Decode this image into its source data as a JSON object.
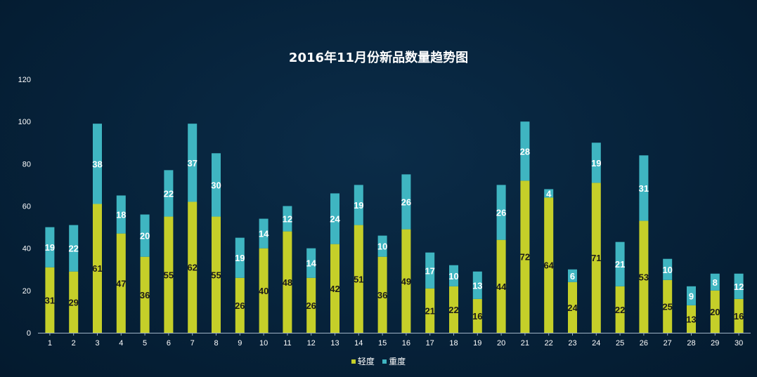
{
  "chart_data": {
    "type": "bar",
    "stacked": true,
    "title": "2016年11月份新品数量趋势图",
    "xlabel": "",
    "ylabel": "",
    "ylim": [
      0,
      120
    ],
    "yticks": [
      0,
      20,
      40,
      60,
      80,
      100,
      120
    ],
    "grid": false,
    "legend_position": "bottom",
    "categories": [
      "1",
      "2",
      "3",
      "4",
      "5",
      "6",
      "7",
      "8",
      "9",
      "10",
      "11",
      "12",
      "13",
      "14",
      "15",
      "16",
      "17",
      "18",
      "19",
      "20",
      "21",
      "22",
      "23",
      "24",
      "25",
      "26",
      "27",
      "28",
      "29",
      "30"
    ],
    "series": [
      {
        "name": "轻度",
        "color": "#c5cf29",
        "values": [
          31,
          29,
          61,
          47,
          36,
          55,
          62,
          55,
          26,
          40,
          48,
          26,
          42,
          51,
          36,
          49,
          21,
          22,
          16,
          44,
          72,
          64,
          24,
          71,
          22,
          53,
          25,
          13,
          20,
          16
        ]
      },
      {
        "name": "重度",
        "color": "#3fb5c1",
        "values": [
          19,
          22,
          38,
          18,
          20,
          22,
          37,
          30,
          19,
          14,
          12,
          14,
          24,
          19,
          10,
          26,
          17,
          10,
          13,
          26,
          28,
          4,
          6,
          19,
          21,
          31,
          10,
          9,
          8,
          12
        ]
      }
    ]
  }
}
